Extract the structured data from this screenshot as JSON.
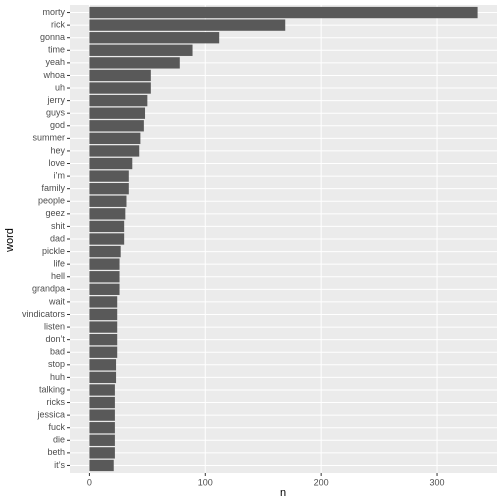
{
  "chart_data": {
    "type": "bar",
    "orientation": "horizontal",
    "x_label": "n",
    "y_label": "word",
    "categories": [
      "morty",
      "rick",
      "gonna",
      "time",
      "yeah",
      "whoa",
      "uh",
      "jerry",
      "guys",
      "god",
      "summer",
      "hey",
      "love",
      "i’m",
      "family",
      "people",
      "geez",
      "shit",
      "dad",
      "pickle",
      "life",
      "hell",
      "grandpa",
      "wait",
      "vindicators",
      "listen",
      "don’t",
      "bad",
      "stop",
      "huh",
      "talking",
      "ricks",
      "jessica",
      "fuck",
      "die",
      "beth",
      "it’s"
    ],
    "values": [
      335,
      169,
      112,
      89,
      78,
      53,
      53,
      50,
      48,
      47,
      44,
      43,
      37,
      34,
      34,
      32,
      31,
      30,
      30,
      27,
      26,
      26,
      26,
      24,
      24,
      24,
      24,
      24,
      23,
      23,
      22,
      22,
      22,
      22,
      22,
      22,
      21
    ],
    "color": "#595959",
    "xlim": [
      -16.75,
      351.75
    ],
    "xticks": [
      0,
      100,
      200,
      300
    ],
    "grid": true
  }
}
